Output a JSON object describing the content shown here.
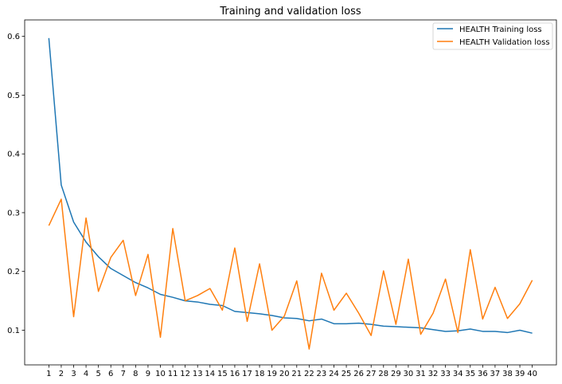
{
  "chart_data": {
    "type": "line",
    "title": "Training and validation loss",
    "xlabel": "",
    "ylabel": "",
    "x": [
      1,
      2,
      3,
      4,
      5,
      6,
      7,
      8,
      9,
      10,
      11,
      12,
      13,
      14,
      15,
      16,
      17,
      18,
      19,
      20,
      21,
      22,
      23,
      24,
      25,
      26,
      27,
      28,
      29,
      30,
      31,
      32,
      33,
      34,
      35,
      36,
      37,
      38,
      39,
      40
    ],
    "xticks": [
      "1",
      "2",
      "3",
      "4",
      "5",
      "6",
      "7",
      "8",
      "9",
      "10",
      "11",
      "12",
      "13",
      "14",
      "15",
      "16",
      "17",
      "18",
      "19",
      "20",
      "21",
      "22",
      "23",
      "24",
      "25",
      "26",
      "27",
      "28",
      "29",
      "30",
      "31",
      "32",
      "33",
      "34",
      "35",
      "36",
      "37",
      "38",
      "39",
      "40"
    ],
    "yticks": [
      0.1,
      0.2,
      0.3,
      0.4,
      0.5,
      0.6
    ],
    "ytick_labels": [
      "0.1",
      "0.2",
      "0.3",
      "0.4",
      "0.5",
      "0.6"
    ],
    "xlim": [
      -0.95,
      41.95
    ],
    "ylim": [
      0.041,
      0.628
    ],
    "grid": false,
    "legend_position": "top-right",
    "series": [
      {
        "name": "HEALTH Training loss",
        "color": "#1f77b4",
        "values": [
          0.597,
          0.347,
          0.284,
          0.25,
          0.225,
          0.205,
          0.193,
          0.181,
          0.172,
          0.161,
          0.156,
          0.15,
          0.148,
          0.144,
          0.142,
          0.132,
          0.13,
          0.128,
          0.125,
          0.121,
          0.12,
          0.116,
          0.119,
          0.111,
          0.111,
          0.112,
          0.11,
          0.107,
          0.106,
          0.105,
          0.104,
          0.101,
          0.098,
          0.099,
          0.102,
          0.098,
          0.098,
          0.096,
          0.1,
          0.095
        ]
      },
      {
        "name": "HEALTH Validation loss",
        "color": "#ff7f0e",
        "values": [
          0.278,
          0.323,
          0.123,
          0.291,
          0.166,
          0.224,
          0.253,
          0.159,
          0.229,
          0.088,
          0.273,
          0.15,
          0.159,
          0.171,
          0.134,
          0.24,
          0.115,
          0.213,
          0.1,
          0.124,
          0.184,
          0.068,
          0.197,
          0.134,
          0.163,
          0.129,
          0.091,
          0.201,
          0.11,
          0.221,
          0.093,
          0.129,
          0.187,
          0.096,
          0.237,
          0.119,
          0.173,
          0.12,
          0.145,
          0.185
        ]
      }
    ]
  }
}
